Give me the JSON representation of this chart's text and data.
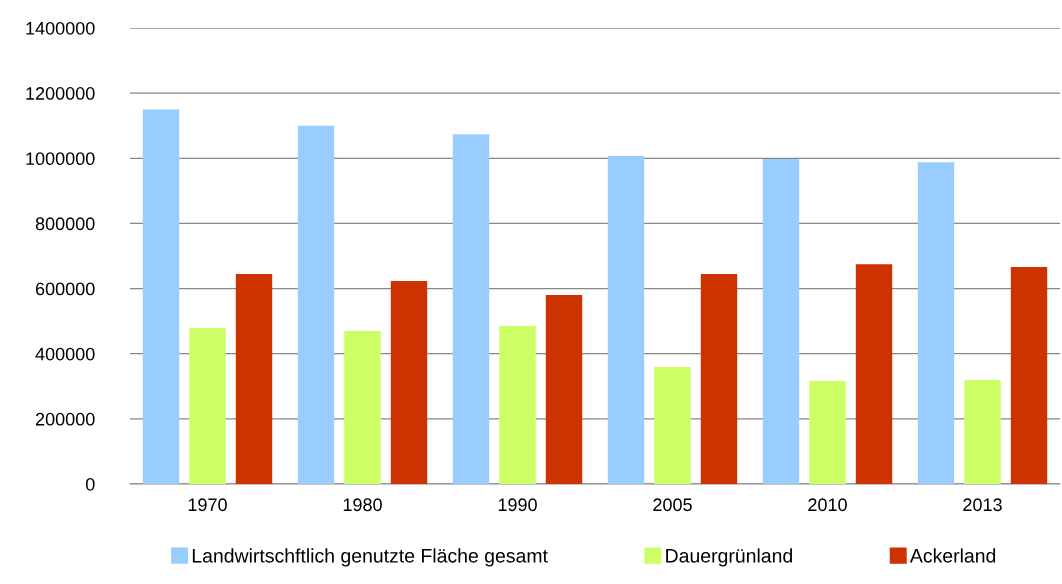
{
  "chart_data": {
    "type": "bar",
    "categories": [
      "1970",
      "1980",
      "1990",
      "2005",
      "2010",
      "2013"
    ],
    "series": [
      {
        "name": "Landwirtschftlich genutzte Fläche gesamt",
        "color": "#99ccff",
        "values": [
          1150000,
          1100000,
          1074000,
          1007000,
          998000,
          988000
        ]
      },
      {
        "name": "Dauergrünland",
        "color": "#ccff66",
        "values": [
          479000,
          470000,
          485000,
          359000,
          316000,
          319000
        ]
      },
      {
        "name": "Ackerland",
        "color": "#cc3300",
        "values": [
          645000,
          623000,
          580000,
          645000,
          675000,
          666000
        ]
      }
    ],
    "ylim": [
      0,
      1400000
    ],
    "yticks": [
      0,
      200000,
      400000,
      600000,
      800000,
      1000000,
      1200000,
      1400000
    ],
    "grid": "y",
    "legend": "bottom"
  }
}
